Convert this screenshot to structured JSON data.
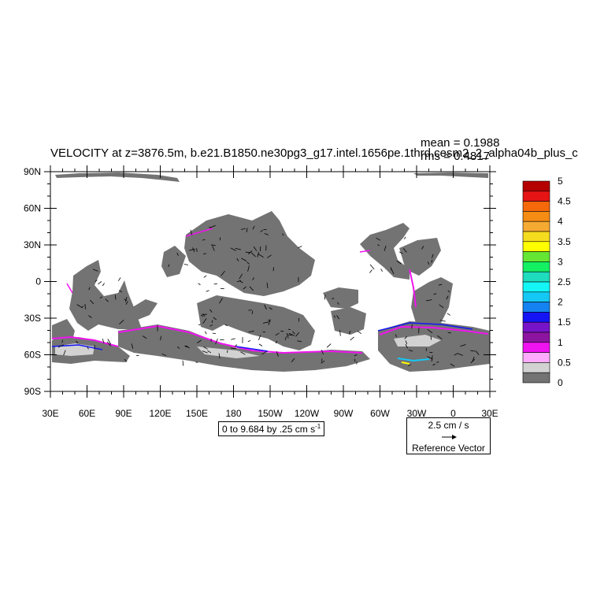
{
  "plot": {
    "title": "VELOCITY at z=3876.5m, b.e21.B1850.ne30pg3_g17.intel.1656pe.1thrd.cesm2_2_alpha04b_plus_c",
    "mean_text": "mean = 0.1988",
    "rms_text": "rms = 0.4817"
  },
  "axes": {
    "lat_labels": [
      "90N",
      "60N",
      "30N",
      "0",
      "30S",
      "60S",
      "90S"
    ],
    "lon_labels": [
      "30E",
      "60E",
      "90E",
      "120E",
      "150E",
      "180",
      "150W",
      "120W",
      "90W",
      "60W",
      "30W",
      "0",
      "30E"
    ]
  },
  "contour_info": {
    "text": "0 to 9.684 by .25 cm s",
    "unit_exponent": "-1"
  },
  "reference_vector": {
    "magnitude_text": "2.5 cm / s",
    "label": "Reference Vector"
  },
  "colorbar": {
    "labels": [
      "5",
      "4.5",
      "4",
      "3.5",
      "3",
      "2.5",
      "2",
      "1.5",
      "1",
      "0.5",
      "0"
    ],
    "colors_top_to_bottom": [
      "#b40000",
      "#e61414",
      "#f5690a",
      "#f58c14",
      "#f5aa32",
      "#f5dc1e",
      "#ffff00",
      "#64e632",
      "#14f064",
      "#1edcbe",
      "#14f5f5",
      "#14c8f5",
      "#1482f0",
      "#1414f5",
      "#7814c8",
      "#8c14a0",
      "#f014f0",
      "#ffaaff",
      "#d2d2d2",
      "#737373"
    ]
  }
}
